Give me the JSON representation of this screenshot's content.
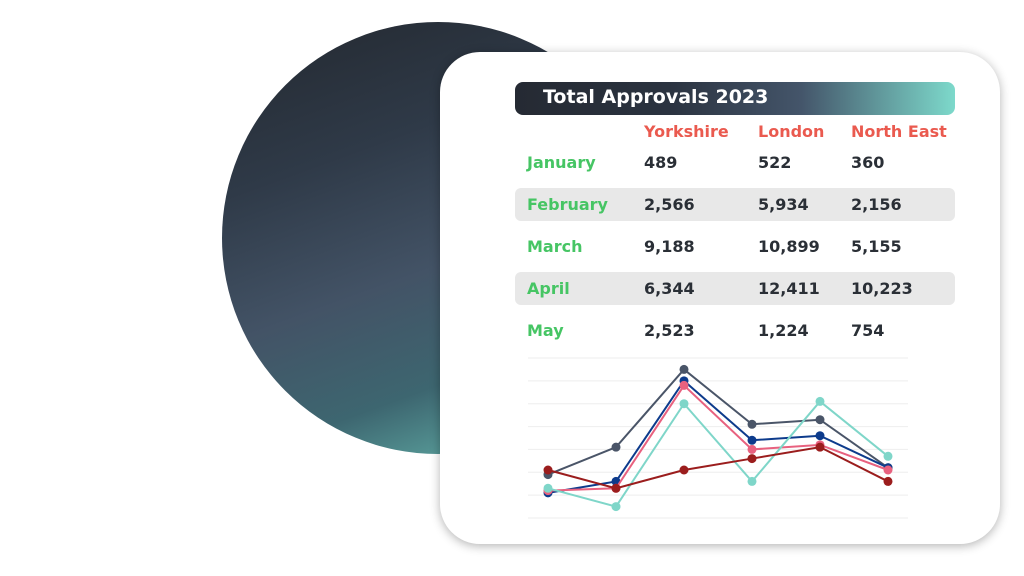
{
  "chart_data": {
    "type": "table",
    "title": "Total Approvals 2023",
    "columns": [
      "Yorkshire",
      "London",
      "North East"
    ],
    "rows": [
      {
        "month": "January",
        "values": [
          "489",
          "522",
          "360"
        ]
      },
      {
        "month": "February",
        "values": [
          "2,566",
          "5,934",
          "2,156"
        ]
      },
      {
        "month": "March",
        "values": [
          "9,188",
          "10,899",
          "5,155"
        ]
      },
      {
        "month": "April",
        "values": [
          "6,344",
          "12,411",
          "10,223"
        ]
      },
      {
        "month": "May",
        "values": [
          "2,523",
          "1,224",
          "754"
        ]
      }
    ],
    "line_chart": {
      "type": "line",
      "x": [
        1,
        2,
        3,
        4,
        5,
        6
      ],
      "ylim": [
        0,
        7
      ],
      "grid": true,
      "series": [
        {
          "color": "#4a5568",
          "values": [
            1.9,
            3.1,
            6.5,
            4.1,
            4.3,
            2.2
          ]
        },
        {
          "color": "#0d3b8c",
          "values": [
            1.1,
            1.6,
            6.0,
            3.4,
            3.6,
            2.2
          ]
        },
        {
          "color": "#e8617f",
          "values": [
            1.2,
            1.3,
            5.8,
            3.0,
            3.2,
            2.1
          ]
        },
        {
          "color": "#7fd6c9",
          "values": [
            1.3,
            0.5,
            5.0,
            1.6,
            5.1,
            2.7
          ]
        },
        {
          "color": "#9b1d1d",
          "values": [
            2.1,
            1.3,
            2.1,
            2.6,
            3.1,
            1.6
          ]
        }
      ]
    }
  }
}
